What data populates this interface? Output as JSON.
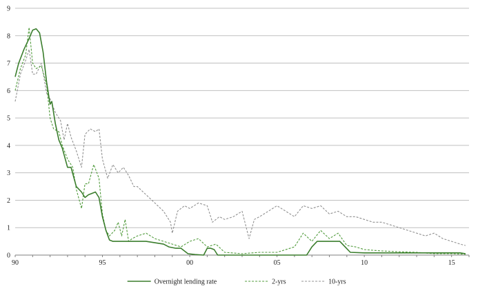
{
  "chart_data": {
    "type": "line",
    "title": "",
    "xlabel": "",
    "ylabel": "",
    "xlim": [
      1990,
      2016
    ],
    "ylim": [
      0,
      9
    ],
    "y_ticks": [
      "0",
      "1",
      "2",
      "3",
      "4",
      "5",
      "6",
      "7",
      "8",
      "9"
    ],
    "x_ticks": [
      {
        "value": 1990,
        "label": "90"
      },
      {
        "value": 1995,
        "label": "95"
      },
      {
        "value": 2000,
        "label": "00"
      },
      {
        "value": 2005,
        "label": "05"
      },
      {
        "value": 2010,
        "label": "10"
      },
      {
        "value": 2015,
        "label": "15"
      }
    ],
    "grid": true,
    "legend_position": "bottom",
    "series": [
      {
        "name": "Overnight lending rate",
        "color": "#3a7d2c",
        "style": "solid",
        "x": [
          1990.0,
          1990.2,
          1990.5,
          1990.8,
          1991.0,
          1991.2,
          1991.4,
          1991.6,
          1991.8,
          1992.0,
          1992.1,
          1992.3,
          1992.5,
          1992.7,
          1993.0,
          1993.2,
          1993.5,
          1993.8,
          1994.0,
          1994.2,
          1994.6,
          1994.8,
          1995.0,
          1995.2,
          1995.4,
          1995.6,
          1995.8,
          1996.2,
          1996.6,
          1997.0,
          1997.5,
          1998.0,
          1998.5,
          1998.8,
          1999.2,
          1999.5,
          1999.9,
          2000.3,
          2000.8,
          2001.0,
          2001.2,
          2001.4,
          2001.6,
          2002.0,
          2004.0,
          2006.0,
          2006.7,
          2007.0,
          2007.3,
          2008.0,
          2008.6,
          2008.9,
          2009.2,
          2010.0,
          2012.0,
          2014.0,
          2015.5,
          2015.8
        ],
        "values": [
          6.5,
          7.0,
          7.5,
          7.9,
          8.2,
          8.25,
          8.1,
          7.4,
          6.3,
          5.5,
          5.6,
          4.8,
          4.2,
          3.9,
          3.2,
          3.2,
          2.5,
          2.3,
          2.1,
          2.2,
          2.3,
          2.1,
          1.4,
          0.9,
          0.55,
          0.5,
          0.5,
          0.5,
          0.5,
          0.5,
          0.5,
          0.45,
          0.4,
          0.3,
          0.25,
          0.25,
          0.05,
          0.02,
          0.0,
          0.25,
          0.25,
          0.2,
          0.0,
          0.0,
          0.0,
          0.0,
          0.0,
          0.3,
          0.5,
          0.5,
          0.5,
          0.3,
          0.1,
          0.08,
          0.08,
          0.08,
          0.08,
          0.05
        ]
      },
      {
        "name": "2-yrs",
        "color": "#4f9a3a",
        "style": "dashed",
        "x": [
          1990.0,
          1990.3,
          1990.6,
          1990.8,
          1991.0,
          1991.2,
          1991.5,
          1991.8,
          1992.0,
          1992.2,
          1992.5,
          1992.7,
          1993.0,
          1993.3,
          1993.5,
          1993.8,
          1994.0,
          1994.2,
          1994.5,
          1994.8,
          1995.0,
          1995.2,
          1995.4,
          1995.7,
          1995.9,
          1996.1,
          1996.3,
          1996.5,
          1996.7,
          1997.0,
          1997.5,
          1998.0,
          1998.5,
          1999.0,
          1999.5,
          2000.0,
          2000.5,
          2001.0,
          2001.5,
          2002.0,
          2003.0,
          2004.0,
          2005.0,
          2006.0,
          2006.5,
          2007.0,
          2007.5,
          2008.0,
          2008.5,
          2009.0,
          2009.5,
          2010.0,
          2011.0,
          2012.0,
          2013.0,
          2014.0,
          2015.0,
          2015.8
        ],
        "values": [
          6.0,
          6.8,
          7.3,
          8.3,
          7.0,
          6.8,
          6.9,
          6.2,
          5.0,
          4.6,
          4.5,
          4.0,
          3.5,
          3.2,
          2.4,
          1.7,
          2.6,
          2.6,
          3.3,
          2.8,
          1.5,
          0.9,
          0.7,
          0.9,
          1.2,
          0.7,
          1.3,
          0.5,
          0.6,
          0.7,
          0.8,
          0.6,
          0.5,
          0.4,
          0.3,
          0.5,
          0.6,
          0.3,
          0.4,
          0.1,
          0.05,
          0.1,
          0.1,
          0.3,
          0.8,
          0.5,
          0.9,
          0.6,
          0.8,
          0.35,
          0.3,
          0.2,
          0.15,
          0.12,
          0.1,
          0.05,
          0.05,
          0.03
        ]
      },
      {
        "name": "10-yrs",
        "color": "#909090",
        "style": "dashed",
        "x": [
          1990.0,
          1990.3,
          1990.6,
          1990.8,
          1991.0,
          1991.2,
          1991.5,
          1991.8,
          1992.0,
          1992.3,
          1992.6,
          1992.8,
          1993.0,
          1993.2,
          1993.5,
          1993.8,
          1994.0,
          1994.3,
          1994.6,
          1994.8,
          1995.0,
          1995.3,
          1995.6,
          1995.9,
          1996.2,
          1996.5,
          1996.8,
          1997.0,
          1997.5,
          1998.0,
          1998.5,
          1998.9,
          1999.0,
          1999.3,
          1999.7,
          2000.0,
          2000.5,
          2001.0,
          2001.3,
          2001.7,
          2002.0,
          2002.5,
          2003.0,
          2003.4,
          2003.7,
          2004.0,
          2004.5,
          2005.0,
          2005.5,
          2006.0,
          2006.5,
          2007.0,
          2007.5,
          2008.0,
          2008.5,
          2009.0,
          2009.5,
          2010.0,
          2010.5,
          2011.0,
          2011.5,
          2012.0,
          2012.5,
          2013.0,
          2013.5,
          2014.0,
          2014.5,
          2015.0,
          2015.5,
          2015.8
        ],
        "values": [
          5.6,
          6.6,
          7.1,
          7.5,
          6.6,
          6.6,
          7.0,
          5.9,
          5.7,
          5.2,
          4.9,
          4.2,
          4.8,
          4.3,
          3.8,
          3.2,
          4.4,
          4.6,
          4.5,
          4.6,
          3.5,
          2.8,
          3.3,
          3.0,
          3.2,
          2.9,
          2.5,
          2.5,
          2.2,
          1.9,
          1.6,
          1.2,
          0.8,
          1.6,
          1.8,
          1.7,
          1.9,
          1.8,
          1.2,
          1.4,
          1.3,
          1.4,
          1.6,
          0.6,
          1.3,
          1.4,
          1.6,
          1.8,
          1.6,
          1.4,
          1.8,
          1.7,
          1.8,
          1.5,
          1.6,
          1.4,
          1.4,
          1.3,
          1.2,
          1.2,
          1.1,
          1.0,
          0.9,
          0.8,
          0.7,
          0.8,
          0.6,
          0.5,
          0.4,
          0.35
        ]
      }
    ]
  }
}
